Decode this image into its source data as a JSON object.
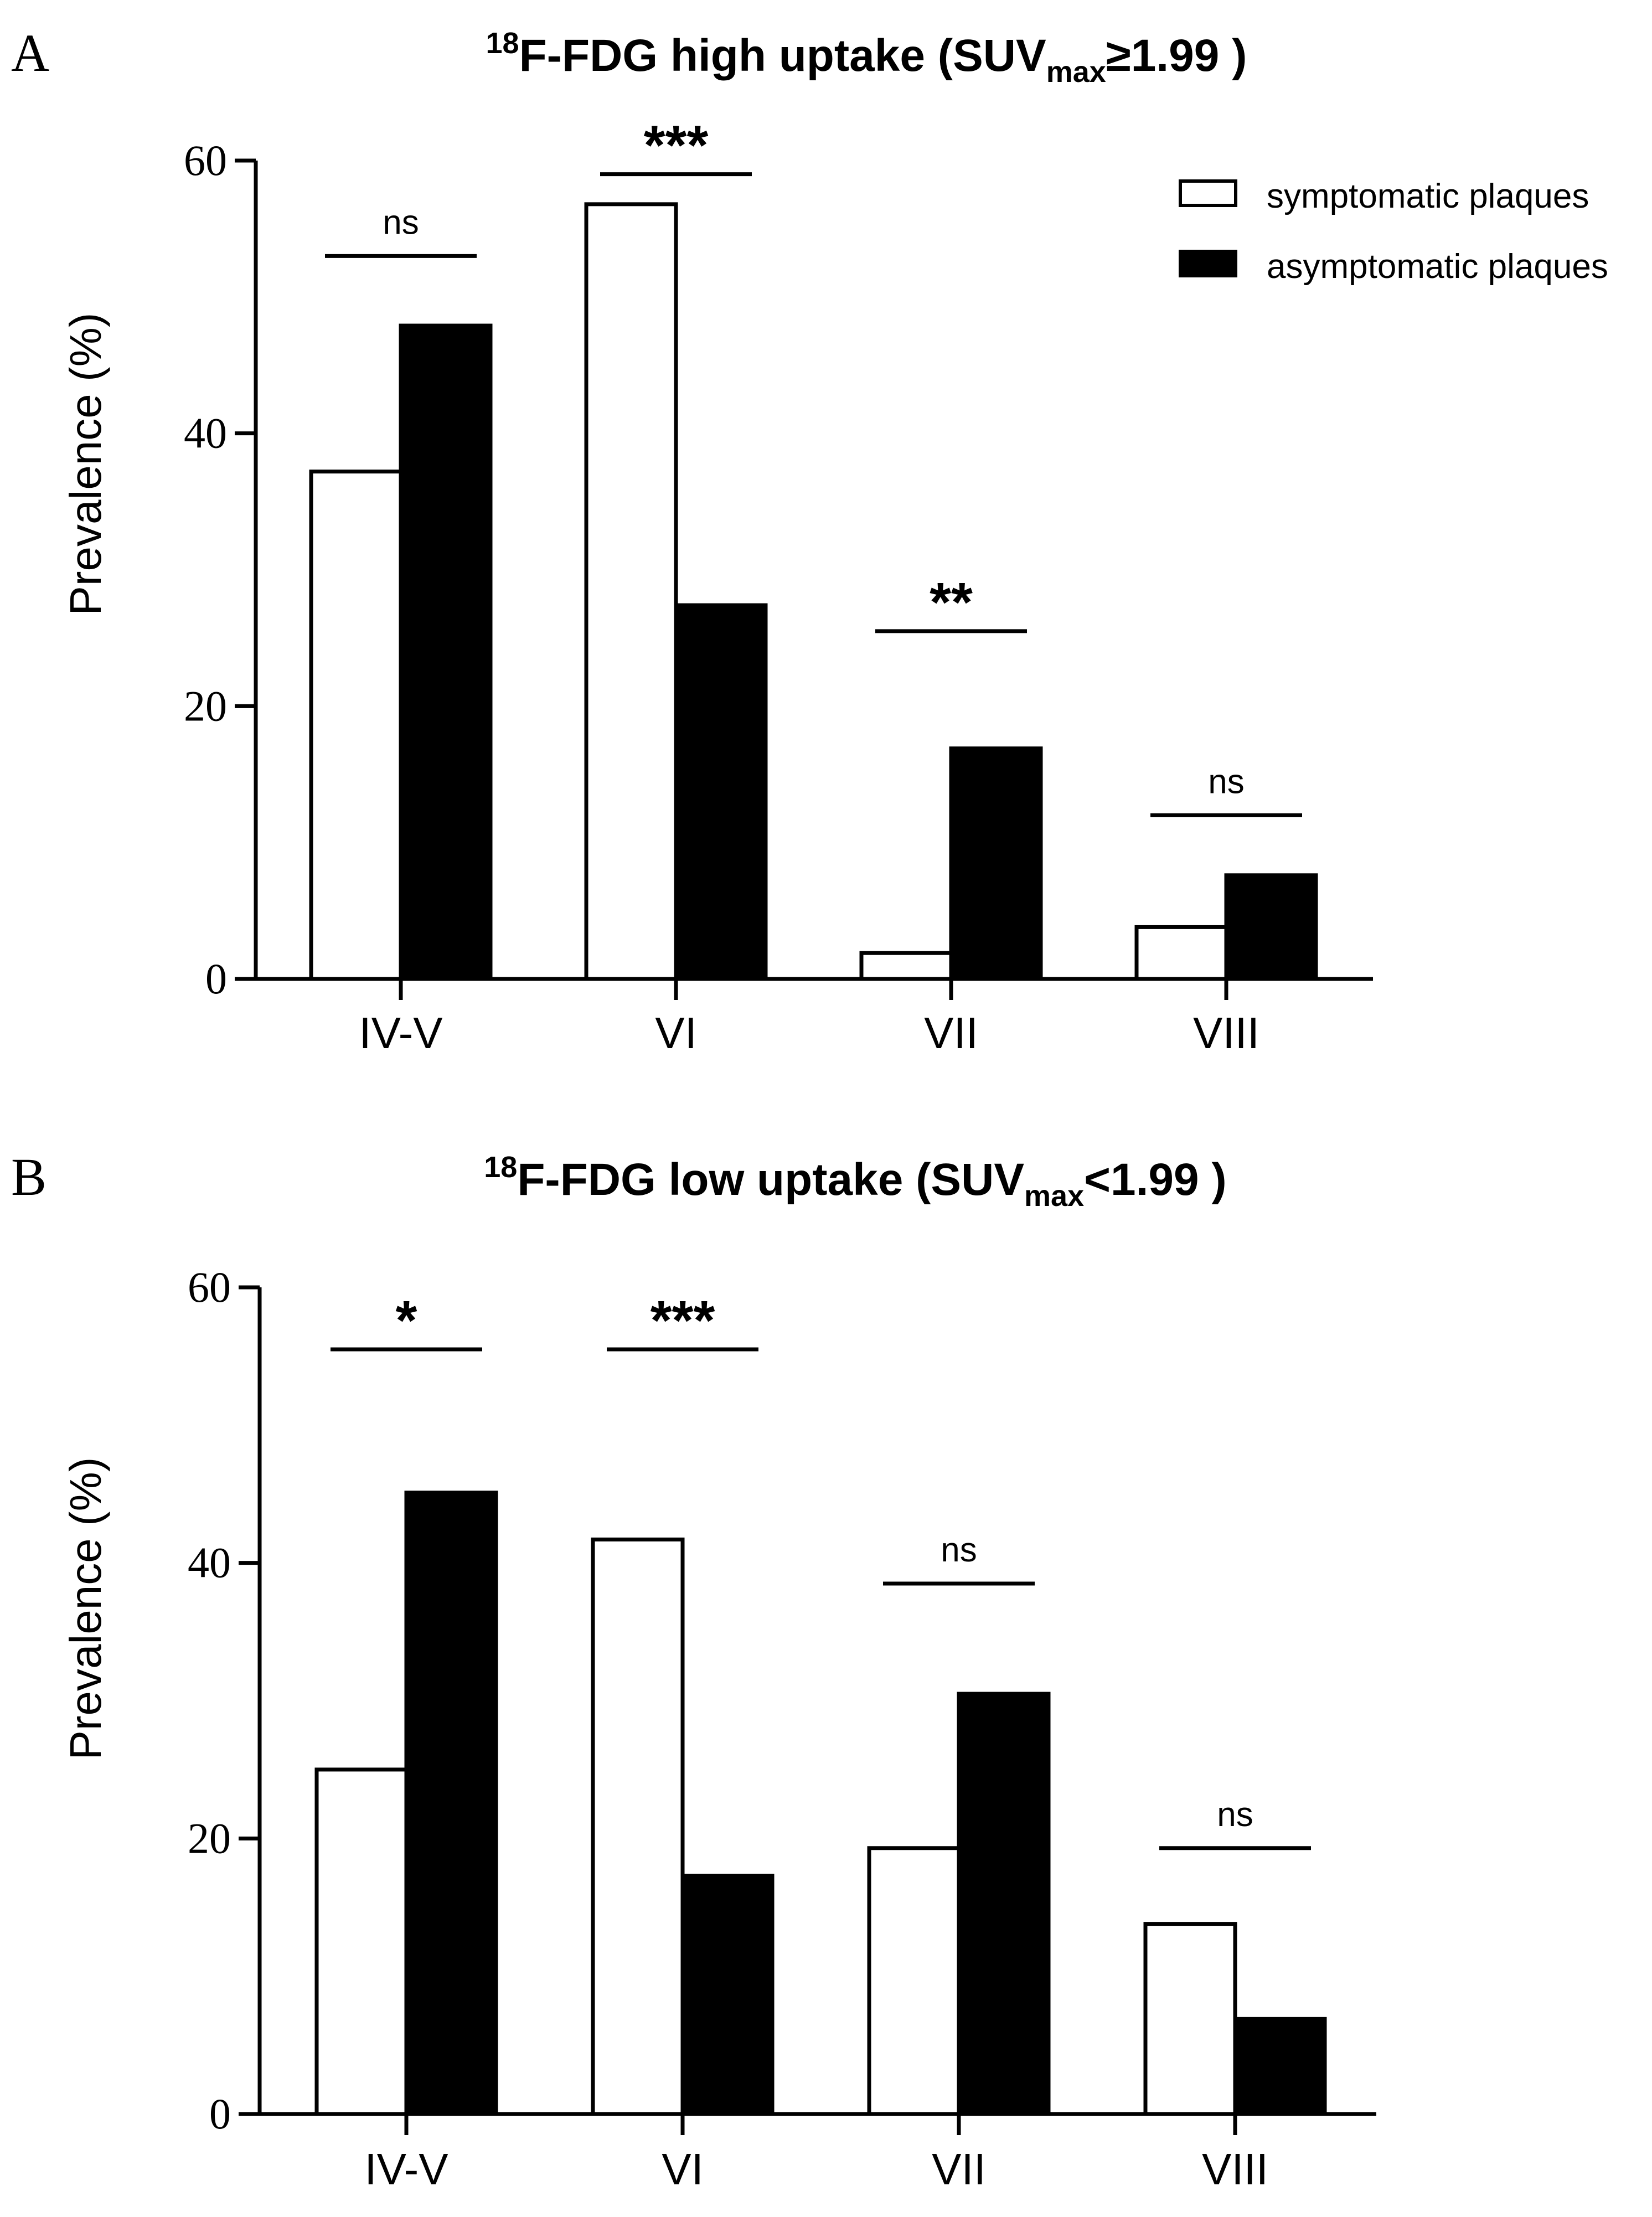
{
  "chart_data": [
    {
      "type": "bar",
      "panel_label": "A",
      "title": {
        "prefix": "18",
        "main": "F-FDG high uptake (SUV",
        "sub": "max",
        "suffix": "≥1.99 )"
      },
      "xlabel": "",
      "ylabel": "Prevalence (%)",
      "ylim": [
        0,
        60
      ],
      "yticks": [
        0,
        20,
        40,
        60
      ],
      "categories": [
        "IV-V",
        "VI",
        "VII",
        "VIII"
      ],
      "series": [
        {
          "name": "symptomatic plaques",
          "fill": "#ffffff",
          "values": [
            37.2,
            56.8,
            1.9,
            3.8
          ]
        },
        {
          "name": "asymptomatic plaques",
          "fill": "#000000",
          "values": [
            47.9,
            27.4,
            16.9,
            7.6
          ]
        }
      ],
      "significance": [
        "ns",
        "***",
        "**",
        "ns"
      ],
      "significance_level": [
        53,
        59,
        25.5,
        12
      ],
      "legend": true,
      "legend_position": "top-right"
    },
    {
      "type": "bar",
      "panel_label": "B",
      "title": {
        "prefix": "18",
        "main": "F-FDG low uptake (SUV",
        "sub": "max",
        "suffix": "<1.99 )"
      },
      "xlabel": "",
      "ylabel": "Prevalence (%)",
      "ylim": [
        0,
        60
      ],
      "yticks": [
        0,
        20,
        40,
        60
      ],
      "categories": [
        "IV-V",
        "VI",
        "VII",
        "VIII"
      ],
      "series": [
        {
          "name": "symptomatic plaques",
          "fill": "#ffffff",
          "values": [
            25.0,
            41.7,
            19.3,
            13.8
          ]
        },
        {
          "name": "asymptomatic plaques",
          "fill": "#000000",
          "values": [
            45.1,
            17.3,
            30.5,
            6.9
          ]
        }
      ],
      "significance": [
        "*",
        "***",
        "ns",
        "ns"
      ],
      "significance_level": [
        55.5,
        55.5,
        38.5,
        19.3
      ],
      "legend": false
    }
  ]
}
